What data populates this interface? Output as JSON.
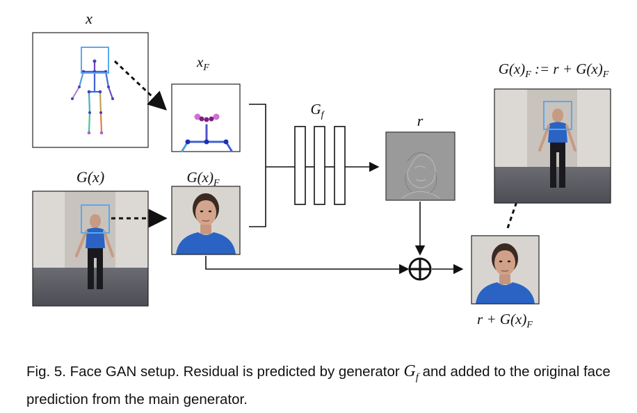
{
  "labels": {
    "x": "x",
    "x_f": "x",
    "x_f_sub": "F",
    "gx": "G(x)",
    "gx_f": "G(x)",
    "gx_f_sub": "F",
    "gf": "G",
    "gf_sub": "f",
    "r": "r",
    "result": "r + G(x)",
    "result_sub": "F",
    "update_lhs": "G(x)",
    "update_lhs_sub": "F",
    "update_rhs": " := r + G(x)",
    "update_rhs_sub": "F"
  },
  "caption": {
    "prefix": "Fig. 5.  Face GAN setup. Residual is predicted by generator ",
    "symbol": "G",
    "symbol_sub": "f",
    "suffix": " and added to the original face prediction from the main generator."
  },
  "colors": {
    "highlight_box": "#5aa8f0",
    "shirt": "#2a63c4",
    "wall": "#d9d6d2",
    "floor": "#5e5e66"
  }
}
